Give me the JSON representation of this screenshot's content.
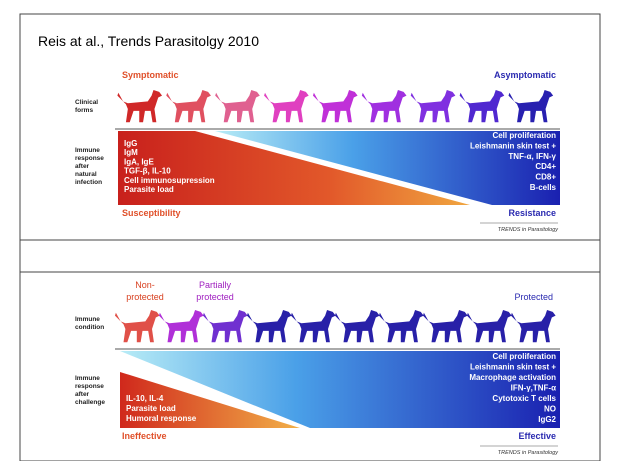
{
  "header": {
    "title": "Reis at al., Trends Parasitolgy 2010"
  },
  "panels": [
    {
      "left_headings": [
        "Symptomatic"
      ],
      "right_heading": "Asymptomatic",
      "row_label": [
        "Clinical",
        "forms"
      ],
      "response_label": [
        "Immune",
        "response",
        "after",
        "natural",
        "infection"
      ],
      "left_list": [
        "IgG",
        "IgM",
        "IgA, IgE",
        "TGF-β, IL-10",
        "Cell immunosupression",
        "Parasite load"
      ],
      "right_list": [
        "Cell proliferation",
        "Leishmanin skin test +",
        "TNF-α, IFN-γ",
        "CD4+",
        "CD8+",
        "B-cells"
      ],
      "left_outcome": "Susceptibility",
      "right_outcome": "Resistance",
      "source": "TRENDS in Parasitology"
    },
    {
      "left_headings": [
        "Non-",
        "protected",
        "Partially",
        "protected"
      ],
      "right_heading": "Protected",
      "row_label": [
        "Immune",
        "condition"
      ],
      "response_label": [
        "Immune",
        "response",
        "after",
        "challenge"
      ],
      "left_list": [
        "IL-10, IL-4",
        "Parasite load",
        "Humoral response"
      ],
      "right_list": [
        "Cell proliferation",
        "Leishmanin skin test +",
        "Macrophage activation",
        "IFN-γ,TNF-α",
        "Cytotoxic T cells",
        "NO",
        "IgG2"
      ],
      "left_outcome": "Ineffective",
      "right_outcome": "Effective",
      "source": "TRENDS in Parasitology"
    }
  ]
}
